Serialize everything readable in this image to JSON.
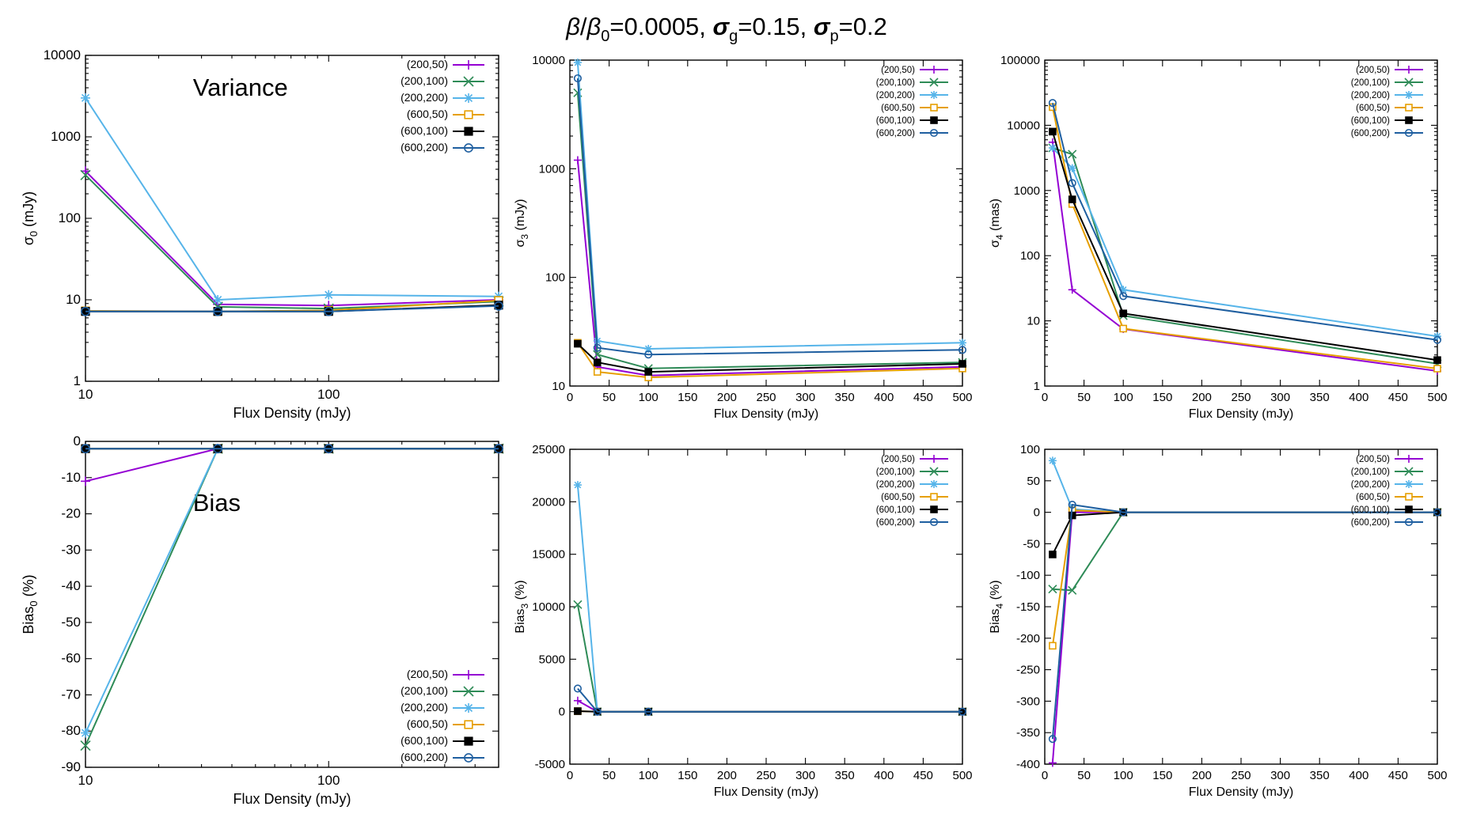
{
  "figure": {
    "title": {
      "parts": [
        "β",
        "/",
        "β",
        "0",
        "=0.0005, ",
        "σ",
        "g",
        "=0.15, ",
        "σ",
        "p",
        "=0.2"
      ]
    }
  },
  "legend_entries": [
    "(200,50)",
    "(200,100)",
    "(200,200)",
    "(600,50)",
    "(600,100)",
    "(600,200)"
  ],
  "series_styles": {
    "colors": [
      "#9400d3",
      "#2e8b57",
      "#56b4e9",
      "#e69f00",
      "#000000",
      "#1f5fa0"
    ],
    "markers": [
      "plus",
      "cross",
      "star",
      "square-open",
      "square-filled",
      "circle-open"
    ]
  },
  "chart_data": [
    {
      "id": "sigma0",
      "type": "line",
      "title": "Variance",
      "xlabel": "Flux Density (mJy)",
      "ylabel": "σ0 (mJy)",
      "xscale": "log",
      "yscale": "log",
      "xlim": [
        10,
        500
      ],
      "ylim": [
        1,
        10000
      ],
      "xticks": [
        10,
        100
      ],
      "xtick_labels": [
        "10",
        "100"
      ],
      "yticks": [
        1,
        10,
        100,
        1000,
        10000
      ],
      "ytick_labels": [
        "1",
        "10",
        "100",
        "1000",
        "10000"
      ],
      "legend_position": "top-right",
      "x": [
        10,
        35,
        100,
        500
      ],
      "series": [
        {
          "name": "(200,50)",
          "values": [
            380,
            8.8,
            8.5,
            10.0
          ]
        },
        {
          "name": "(200,100)",
          "values": [
            340,
            8.2,
            7.8,
            9.5
          ]
        },
        {
          "name": "(200,200)",
          "values": [
            3000,
            10.0,
            11.5,
            11.0
          ]
        },
        {
          "name": "(600,50)",
          "values": [
            7.3,
            7.2,
            7.4,
            9.8
          ]
        },
        {
          "name": "(600,100)",
          "values": [
            7.2,
            7.2,
            7.2,
            8.6
          ]
        },
        {
          "name": "(600,200)",
          "values": [
            7.2,
            7.2,
            7.2,
            8.4
          ]
        }
      ]
    },
    {
      "id": "sigma3",
      "type": "line",
      "title": "",
      "xlabel": "Flux Density (mJy)",
      "ylabel": "σ3 (mJy)",
      "xscale": "linear",
      "yscale": "log",
      "xlim": [
        0,
        500
      ],
      "ylim": [
        10,
        10000
      ],
      "xticks": [
        0,
        50,
        100,
        150,
        200,
        250,
        300,
        350,
        400,
        450,
        500
      ],
      "xtick_labels": [
        "0",
        "50",
        "100",
        "150",
        "200",
        "250",
        "300",
        "350",
        "400",
        "450",
        "500"
      ],
      "yticks": [
        10,
        100,
        1000,
        10000
      ],
      "ytick_labels": [
        "10",
        "100",
        "1000",
        "10000"
      ],
      "legend_position": "top-right",
      "x": [
        10,
        35,
        100,
        500
      ],
      "series": [
        {
          "name": "(200,50)",
          "values": [
            1200,
            15,
            12.5,
            15
          ]
        },
        {
          "name": "(200,100)",
          "values": [
            5000,
            19.5,
            14.5,
            16.5
          ]
        },
        {
          "name": "(200,200)",
          "values": [
            9500,
            26,
            22,
            25
          ]
        },
        {
          "name": "(600,50)",
          "values": [
            25,
            13.5,
            12,
            14.5
          ]
        },
        {
          "name": "(600,100)",
          "values": [
            24.5,
            16.5,
            13.5,
            16
          ]
        },
        {
          "name": "(600,200)",
          "values": [
            6800,
            22.5,
            19.5,
            21.5
          ]
        }
      ]
    },
    {
      "id": "sigma4",
      "type": "line",
      "title": "",
      "xlabel": "Flux Density (mJy)",
      "ylabel": "σ4 (mas)",
      "xscale": "linear",
      "yscale": "log",
      "xlim": [
        0,
        500
      ],
      "ylim": [
        1,
        100000
      ],
      "xticks": [
        0,
        50,
        100,
        150,
        200,
        250,
        300,
        350,
        400,
        450,
        500
      ],
      "xtick_labels": [
        "0",
        "50",
        "100",
        "150",
        "200",
        "250",
        "300",
        "350",
        "400",
        "450",
        "500"
      ],
      "yticks": [
        1,
        10,
        100,
        1000,
        10000,
        100000
      ],
      "ytick_labels": [
        "1",
        "10",
        "100",
        "1000",
        "10000",
        "100000"
      ],
      "legend_position": "top-right",
      "x": [
        10,
        35,
        100,
        500
      ],
      "series": [
        {
          "name": "(200,50)",
          "values": [
            5500,
            30,
            7.5,
            1.7
          ]
        },
        {
          "name": "(200,100)",
          "values": [
            4500,
            3600,
            12,
            2.2
          ]
        },
        {
          "name": "(200,200)",
          "values": [
            4500,
            2200,
            30,
            5.8
          ]
        },
        {
          "name": "(600,50)",
          "values": [
            19000,
            620,
            7.6,
            1.85
          ]
        },
        {
          "name": "(600,100)",
          "values": [
            8000,
            730,
            13,
            2.5
          ]
        },
        {
          "name": "(600,200)",
          "values": [
            22000,
            1300,
            24,
            5.1
          ]
        }
      ]
    },
    {
      "id": "bias0",
      "type": "line",
      "title": "Bias",
      "xlabel": "Flux Density (mJy)",
      "ylabel": "Bias0 (%)",
      "xscale": "log",
      "yscale": "linear",
      "xlim": [
        10,
        500
      ],
      "ylim": [
        -90,
        0
      ],
      "xticks": [
        10,
        100
      ],
      "xtick_labels": [
        "10",
        "100"
      ],
      "yticks": [
        0,
        -10,
        -20,
        -30,
        -40,
        -50,
        -60,
        -70,
        -80,
        -90
      ],
      "ytick_labels": [
        "0",
        "-10",
        "-20",
        "-30",
        "-40",
        "-50",
        "-60",
        "-70",
        "-80",
        "-90"
      ],
      "legend_position": "bottom-right",
      "x": [
        10,
        35,
        100,
        500
      ],
      "series": [
        {
          "name": "(200,50)",
          "values": [
            -11,
            -2,
            -2,
            -2
          ]
        },
        {
          "name": "(200,100)",
          "values": [
            -84,
            -2,
            -2,
            -2
          ]
        },
        {
          "name": "(200,200)",
          "values": [
            -80.5,
            -2,
            -2,
            -2
          ]
        },
        {
          "name": "(600,50)",
          "values": [
            -2,
            -2,
            -2,
            -2
          ]
        },
        {
          "name": "(600,100)",
          "values": [
            -2,
            -2,
            -2,
            -2
          ]
        },
        {
          "name": "(600,200)",
          "values": [
            -2,
            -2,
            -2,
            -2
          ]
        }
      ]
    },
    {
      "id": "bias3",
      "type": "line",
      "title": "",
      "xlabel": "Flux Density (mJy)",
      "ylabel": "Bias3 (%)",
      "xscale": "linear",
      "yscale": "linear",
      "xlim": [
        0,
        500
      ],
      "ylim": [
        -5000,
        25000
      ],
      "xticks": [
        0,
        50,
        100,
        150,
        200,
        250,
        300,
        350,
        400,
        450,
        500
      ],
      "xtick_labels": [
        "0",
        "50",
        "100",
        "150",
        "200",
        "250",
        "300",
        "350",
        "400",
        "450",
        "500"
      ],
      "yticks": [
        -5000,
        0,
        5000,
        10000,
        15000,
        20000,
        25000
      ],
      "ytick_labels": [
        "-5000",
        "0",
        "5000",
        "10000",
        "15000",
        "20000",
        "25000"
      ],
      "legend_position": "top-right",
      "x": [
        10,
        35,
        100,
        500
      ],
      "series": [
        {
          "name": "(200,50)",
          "values": [
            1050,
            0,
            0,
            0
          ]
        },
        {
          "name": "(200,100)",
          "values": [
            10200,
            0,
            0,
            0
          ]
        },
        {
          "name": "(200,200)",
          "values": [
            21600,
            0,
            0,
            0
          ]
        },
        {
          "name": "(600,50)",
          "values": [
            50,
            0,
            0,
            0
          ]
        },
        {
          "name": "(600,100)",
          "values": [
            50,
            0,
            0,
            0
          ]
        },
        {
          "name": "(600,200)",
          "values": [
            2200,
            0,
            0,
            0
          ]
        }
      ]
    },
    {
      "id": "bias4",
      "type": "line",
      "title": "",
      "xlabel": "Flux Density (mJy)",
      "ylabel": "Bias4 (%)",
      "xscale": "linear",
      "yscale": "linear",
      "xlim": [
        0,
        500
      ],
      "ylim": [
        -400,
        100
      ],
      "xticks": [
        0,
        50,
        100,
        150,
        200,
        250,
        300,
        350,
        400,
        450,
        500
      ],
      "xtick_labels": [
        "0",
        "50",
        "100",
        "150",
        "200",
        "250",
        "300",
        "350",
        "400",
        "450",
        "500"
      ],
      "yticks": [
        100,
        50,
        0,
        -50,
        -100,
        -150,
        -200,
        -250,
        -300,
        -350,
        -400
      ],
      "ytick_labels": [
        "100",
        "50",
        "0",
        "-50",
        "-100",
        "-150",
        "-200",
        "-250",
        "-300",
        "-350",
        "-400"
      ],
      "legend_position": "top-right",
      "x": [
        10,
        35,
        100,
        500
      ],
      "series": [
        {
          "name": "(200,50)",
          "values": [
            -398,
            0,
            0,
            0
          ]
        },
        {
          "name": "(200,100)",
          "values": [
            -122,
            -124,
            0,
            0
          ]
        },
        {
          "name": "(200,200)",
          "values": [
            82,
            5,
            0,
            0
          ]
        },
        {
          "name": "(600,50)",
          "values": [
            -212,
            3,
            0,
            0
          ]
        },
        {
          "name": "(600,100)",
          "values": [
            -67,
            -5,
            0,
            0
          ]
        },
        {
          "name": "(600,200)",
          "values": [
            -360,
            12,
            0,
            0
          ]
        }
      ]
    }
  ]
}
